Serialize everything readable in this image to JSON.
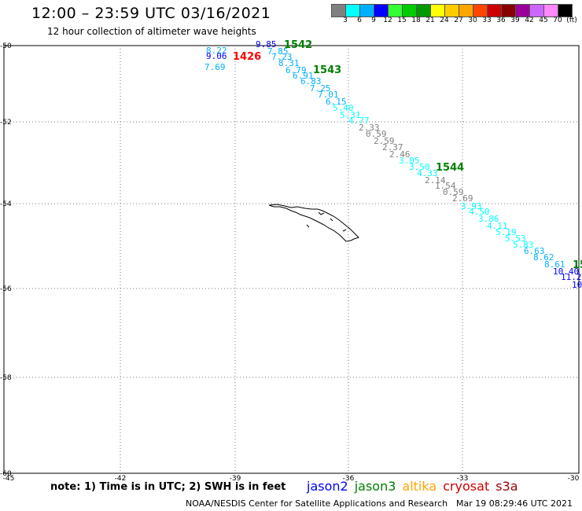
{
  "header": {
    "title": "12:00 – 23:59 UTC 03/16/2021",
    "subtitle": "12 hour collection of altimeter wave heights"
  },
  "legend": {
    "colors": [
      "#808080",
      "#00ffff",
      "#00b0ff",
      "#0000ff",
      "#33ff33",
      "#00cc00",
      "#009900",
      "#ffff00",
      "#ffcc00",
      "#ffa500",
      "#ff4500",
      "#cc0000",
      "#880000",
      "#990099",
      "#cc66ff",
      "#ff88ff",
      "#000000"
    ],
    "ticks": [
      "3",
      "6",
      "9",
      "12",
      "15",
      "18",
      "21",
      "24",
      "27",
      "30",
      "33",
      "36",
      "39",
      "42",
      "45",
      "70",
      "(ft)"
    ]
  },
  "axes": {
    "lat_labels": [
      "-50",
      "-52",
      "-54",
      "-56",
      "-58",
      "-60"
    ],
    "lon_labels": [
      "-45",
      "-42",
      "-39",
      "-36",
      "-33",
      "-30"
    ]
  },
  "passes": [
    {
      "id": "1542",
      "color": "#008000"
    },
    {
      "id": "1426",
      "color": "#ff0000"
    },
    {
      "id": "1543",
      "color": "#008000"
    },
    {
      "id": "1544",
      "color": "#008000"
    },
    {
      "id": "15",
      "color": "#008000"
    }
  ],
  "wave_heights": [
    {
      "value": "8.22",
      "color": "#00b0ff"
    },
    {
      "value": "9.06",
      "color": "#0000ff"
    },
    {
      "value": "7.69",
      "color": "#00b0ff"
    },
    {
      "value": "9.85",
      "color": "#0000ff"
    },
    {
      "value": "7.85",
      "color": "#00b0ff"
    },
    {
      "value": "7.23",
      "color": "#00b0ff"
    },
    {
      "value": "8.31",
      "color": "#00b0ff"
    },
    {
      "value": "6.79",
      "color": "#00b0ff"
    },
    {
      "value": "6.91",
      "color": "#00b0ff"
    },
    {
      "value": "6.83",
      "color": "#00b0ff"
    },
    {
      "value": "7.25",
      "color": "#00b0ff"
    },
    {
      "value": "7.01",
      "color": "#00b0ff"
    },
    {
      "value": "6.15",
      "color": "#00b0ff"
    },
    {
      "value": "5.40",
      "color": "#00ffff"
    },
    {
      "value": "5.31",
      "color": "#00ffff"
    },
    {
      "value": "4.77",
      "color": "#00ffff"
    },
    {
      "value": "2.33",
      "color": "#808080"
    },
    {
      "value": "0.59",
      "color": "#808080"
    },
    {
      "value": "2.59",
      "color": "#808080"
    },
    {
      "value": "2.37",
      "color": "#808080"
    },
    {
      "value": "2.46",
      "color": "#808080"
    },
    {
      "value": "3.05",
      "color": "#00ffff"
    },
    {
      "value": "3.50",
      "color": "#00ffff"
    },
    {
      "value": "4.33",
      "color": "#00ffff"
    },
    {
      "value": "2.14",
      "color": "#808080"
    },
    {
      "value": "1.54",
      "color": "#808080"
    },
    {
      "value": "0.59",
      "color": "#808080"
    },
    {
      "value": "2.69",
      "color": "#808080"
    },
    {
      "value": "3.93",
      "color": "#00ffff"
    },
    {
      "value": "4.50",
      "color": "#00ffff"
    },
    {
      "value": "3.86",
      "color": "#00ffff"
    },
    {
      "value": "4.11",
      "color": "#00ffff"
    },
    {
      "value": "5.19",
      "color": "#00ffff"
    },
    {
      "value": "5.53",
      "color": "#00ffff"
    },
    {
      "value": "5.83",
      "color": "#00ffff"
    },
    {
      "value": "6.63",
      "color": "#00b0ff"
    },
    {
      "value": "8.62",
      "color": "#00b0ff"
    },
    {
      "value": "8.61",
      "color": "#00b0ff"
    },
    {
      "value": "10.40",
      "color": "#0000ff"
    },
    {
      "value": "11.2",
      "color": "#0000ff"
    },
    {
      "value": "10",
      "color": "#0000ff"
    }
  ],
  "footer": {
    "note": "note: 1) Time is in UTC; 2) SWH is in feet",
    "satellites": [
      {
        "name": "jason2",
        "color": "#0000ff"
      },
      {
        "name": "jason3",
        "color": "#008000"
      },
      {
        "name": "altika",
        "color": "#ffa500"
      },
      {
        "name": "cryosat",
        "color": "#cc0000"
      },
      {
        "name": "s3a",
        "color": "#990000"
      }
    ],
    "credit": "NOAA/NESDIS Center for Satellite Applications and Research",
    "timestamp": "Mar 19 08:29:46 UTC 2021"
  }
}
